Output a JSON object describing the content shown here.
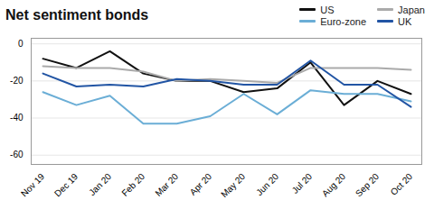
{
  "chart_data": {
    "type": "line",
    "title": "Net sentiment bonds",
    "categories": [
      "Nov 19",
      "Dec 19",
      "Jan 20",
      "Feb 20",
      "Mar 20",
      "Apr 20",
      "May 20",
      "Jun 20",
      "Jul 20",
      "Aug 20",
      "Sep 20",
      "Oct 20"
    ],
    "series": [
      {
        "name": "US",
        "color": "#111111",
        "values": [
          -8,
          -13,
          -4,
          -16,
          -20,
          -20,
          -26,
          -24,
          -10,
          -33,
          -20,
          -27
        ]
      },
      {
        "name": "Japan",
        "color": "#aaaaaa",
        "values": [
          -12,
          -13,
          -13,
          -15,
          -20,
          -19,
          -20,
          -21,
          -13,
          -13,
          -13,
          -14
        ]
      },
      {
        "name": "Euro-zone",
        "color": "#6baed6",
        "values": [
          -26,
          -33,
          -28,
          -43,
          -43,
          -39,
          -27,
          -38,
          -25,
          -27,
          -27,
          -31
        ]
      },
      {
        "name": "UK",
        "color": "#2255a4",
        "values": [
          -16,
          -23,
          -22,
          -23,
          -19,
          -20,
          -22,
          -22,
          -9,
          -22,
          -22,
          -34
        ]
      }
    ],
    "ylim": [
      -65,
      3
    ],
    "yticks": [
      0,
      -20,
      -40,
      -60
    ],
    "grid": true,
    "legend": "upper right"
  }
}
